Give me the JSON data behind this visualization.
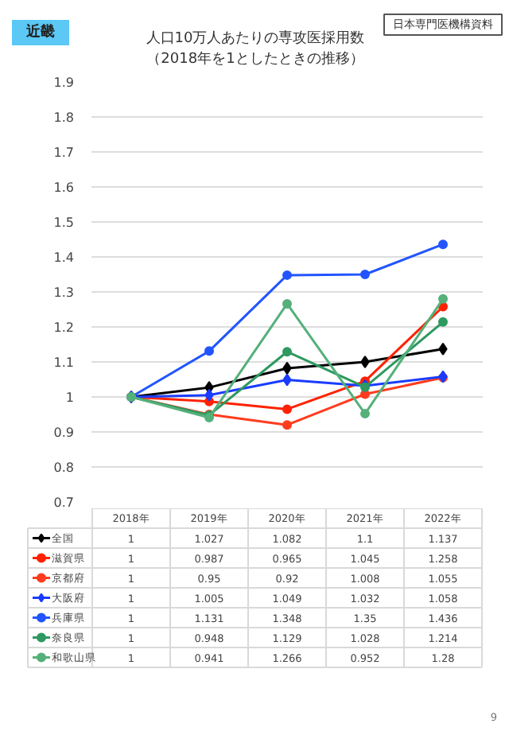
{
  "chart_data": {
    "type": "line",
    "title": "人口10万人あたりの専攻医採用数",
    "subtitle": "（2018年を1としたときの推移）",
    "annotations": [
      "近畿",
      "日本専門医機構資料",
      "9"
    ],
    "categories": [
      "2018年",
      "2019年",
      "2020年",
      "2021年",
      "2022年"
    ],
    "series": [
      {
        "name": "全国",
        "color": "#000000",
        "marker": "diamond",
        "values": [
          1,
          1.027,
          1.082,
          1.1,
          1.137
        ]
      },
      {
        "name": "滋賀県",
        "color": "#ff2200",
        "marker": "circle",
        "values": [
          1,
          0.987,
          0.965,
          1.045,
          1.258
        ]
      },
      {
        "name": "京都府",
        "color": "#ff3c1e",
        "marker": "circle",
        "values": [
          1,
          0.95,
          0.92,
          1.008,
          1.055
        ]
      },
      {
        "name": "大阪府",
        "color": "#1a3cff",
        "marker": "diamond",
        "values": [
          1,
          1.005,
          1.049,
          1.032,
          1.058
        ]
      },
      {
        "name": "兵庫県",
        "color": "#2255ff",
        "marker": "circle",
        "values": [
          1,
          1.131,
          1.348,
          1.35,
          1.436
        ]
      },
      {
        "name": "奈良県",
        "color": "#2e9960",
        "marker": "circle",
        "values": [
          1,
          0.948,
          1.129,
          1.028,
          1.214
        ]
      },
      {
        "name": "和歌山県",
        "color": "#55b07a",
        "marker": "circle",
        "values": [
          1,
          0.941,
          1.266,
          0.952,
          1.28
        ]
      }
    ],
    "ylim": [
      0.7,
      1.9
    ],
    "yticks": [
      0.7,
      0.8,
      0.9,
      1,
      1.1,
      1.2,
      1.3,
      1.4,
      1.5,
      1.6,
      1.7,
      1.8,
      1.9
    ],
    "grid": "y",
    "tick_labels": "y",
    "legend": "bottom",
    "data_labels": true,
    "line_style": "solid"
  }
}
